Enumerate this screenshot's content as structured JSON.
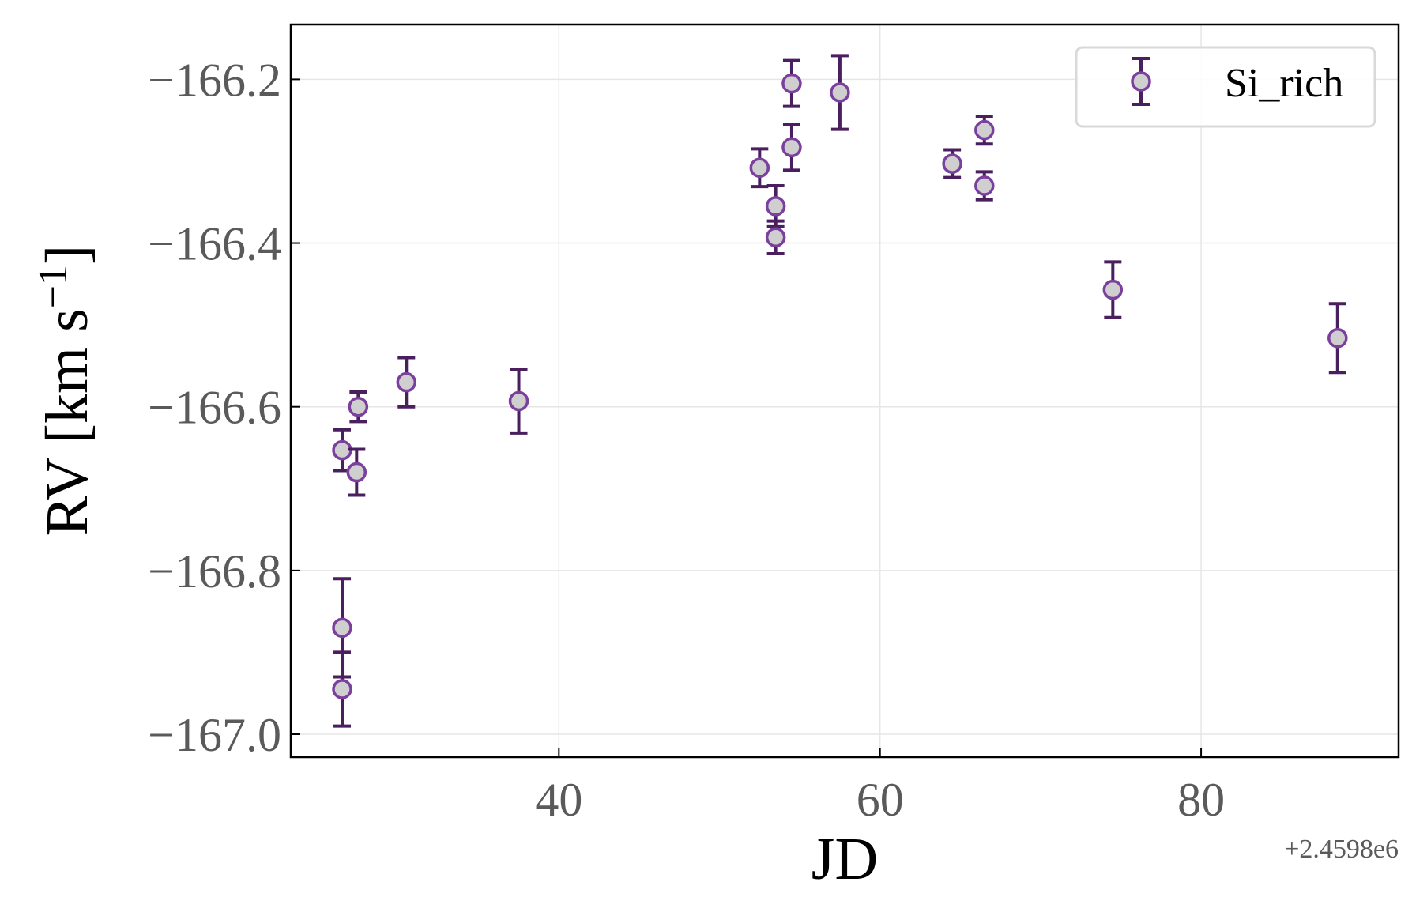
{
  "chart_data": {
    "type": "scatter",
    "xlabel": "JD",
    "ylabel_main": "RV [km s",
    "ylabel_sup": "−1",
    "ylabel_close": "]",
    "x_offset_label": "+2.4598e6",
    "xlim": [
      23.3,
      92.3
    ],
    "ylim": [
      -167.028,
      -166.133
    ],
    "xticks": [
      40,
      60,
      80
    ],
    "yticks": [
      -166.2,
      -166.4,
      -166.6,
      -166.8,
      -167.0
    ],
    "ytick_labels": [
      "−166.2",
      "−166.4",
      "−166.6",
      "−166.8",
      "−167.0"
    ],
    "grid": true,
    "legend_position": "top-right",
    "colors": {
      "marker_edge": "#7b3f9e",
      "marker_fill": "#cfcfcf",
      "errorbar": "#4a1f5e",
      "grid": "#e6e6e6"
    },
    "series": [
      {
        "name": "Si_rich",
        "points": [
          {
            "x": 26.5,
            "y": -166.653,
            "err": 0.025
          },
          {
            "x": 26.5,
            "y": -166.87,
            "err": 0.06
          },
          {
            "x": 26.5,
            "y": -166.945,
            "err": 0.045
          },
          {
            "x": 27.4,
            "y": -166.68,
            "err": 0.028
          },
          {
            "x": 27.5,
            "y": -166.6,
            "err": 0.018
          },
          {
            "x": 30.5,
            "y": -166.57,
            "err": 0.03
          },
          {
            "x": 37.5,
            "y": -166.593,
            "err": 0.039
          },
          {
            "x": 52.5,
            "y": -166.308,
            "err": 0.023
          },
          {
            "x": 53.5,
            "y": -166.355,
            "err": 0.025
          },
          {
            "x": 53.5,
            "y": -166.393,
            "err": 0.02
          },
          {
            "x": 54.5,
            "y": -166.205,
            "err": 0.028
          },
          {
            "x": 54.5,
            "y": -166.283,
            "err": 0.028
          },
          {
            "x": 57.5,
            "y": -166.216,
            "err": 0.045
          },
          {
            "x": 64.5,
            "y": -166.303,
            "err": 0.017
          },
          {
            "x": 66.5,
            "y": -166.262,
            "err": 0.017
          },
          {
            "x": 66.5,
            "y": -166.33,
            "err": 0.017
          },
          {
            "x": 74.5,
            "y": -166.457,
            "err": 0.034
          },
          {
            "x": 88.5,
            "y": -166.516,
            "err": 0.042
          }
        ]
      }
    ]
  }
}
